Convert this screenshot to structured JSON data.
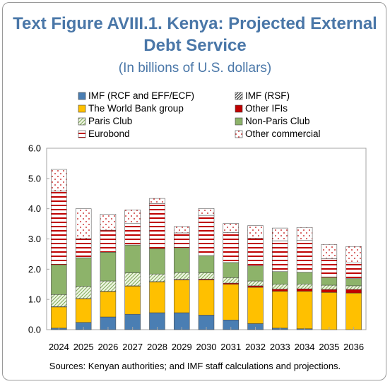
{
  "figure": {
    "title_line1": "Text Figure AVIII.1. Kenya: Projected External",
    "title_line2": "Debt Service",
    "subtitle": "(In billions of U.S. dollars)",
    "source_note": "Sources: Kenyan authorities; and IMF staff calculations and projections."
  },
  "colors": {
    "imf_rcf_eff_ecf": "#4a7eb3",
    "world_bank": "#ffc000",
    "paris_club": "#d6e8b6",
    "eurobond": "#c00000",
    "imf_rsf": "#333333",
    "other_ifis": "#c00000",
    "non_paris_club": "#8db36a",
    "other_commercial": "#c00000",
    "title": "#4a77a8"
  },
  "chart_data": {
    "type": "bar",
    "stacked": true,
    "categories": [
      "2024",
      "2025",
      "2026",
      "2027",
      "2028",
      "2029",
      "2030",
      "2031",
      "2032",
      "2033",
      "2034",
      "2035",
      "2036"
    ],
    "ylim": [
      0,
      6
    ],
    "yticks": [
      "0.0",
      "1.0",
      "2.0",
      "3.0",
      "4.0",
      "5.0",
      "6.0"
    ],
    "grid": false,
    "legend_position": "top",
    "series": [
      {
        "name": "IMF (RCF and EFF/ECF)",
        "pattern": "solid-blue",
        "values": [
          0.05,
          0.24,
          0.42,
          0.51,
          0.56,
          0.56,
          0.48,
          0.32,
          0.2,
          0.05,
          0.03,
          0.0,
          0.0
        ]
      },
      {
        "name": "IMF (RSF)",
        "pattern": "dark-diagonal",
        "values": [
          0,
          0,
          0,
          0,
          0,
          0,
          0,
          0,
          0,
          0,
          0,
          0,
          0
        ]
      },
      {
        "name": "The World Bank group",
        "pattern": "solid-yellow",
        "values": [
          0.7,
          0.78,
          0.84,
          0.93,
          1.02,
          1.08,
          1.16,
          1.18,
          1.2,
          1.22,
          1.24,
          1.23,
          1.21
        ]
      },
      {
        "name": "Other IFIs",
        "pattern": "solid-red",
        "values": [
          0.01,
          0.01,
          0.01,
          0.01,
          0.01,
          0.02,
          0.03,
          0.04,
          0.05,
          0.07,
          0.08,
          0.1,
          0.12
        ]
      },
      {
        "name": "Paris Club",
        "pattern": "green-diagonal",
        "values": [
          0.4,
          0.4,
          0.34,
          0.43,
          0.25,
          0.23,
          0.21,
          0.18,
          0.16,
          0.16,
          0.16,
          0.14,
          0.12
        ]
      },
      {
        "name": "Non-Paris Club",
        "pattern": "solid-green",
        "values": [
          0.99,
          0.95,
          0.95,
          0.92,
          0.84,
          0.82,
          0.57,
          0.5,
          0.5,
          0.42,
          0.39,
          0.26,
          0.24
        ]
      },
      {
        "name": "Eurobond",
        "pattern": "red-horizontal-lines",
        "values": [
          2.43,
          0.63,
          0.73,
          0.72,
          1.49,
          0.49,
          1.33,
          0.99,
          0.91,
          1.02,
          1.06,
          0.62,
          0.51
        ]
      },
      {
        "name": "Other commercial",
        "pattern": "red-dots",
        "values": [
          0.72,
          0.99,
          0.53,
          0.44,
          0.17,
          0.21,
          0.23,
          0.3,
          0.42,
          0.42,
          0.42,
          0.47,
          0.55
        ]
      }
    ]
  }
}
